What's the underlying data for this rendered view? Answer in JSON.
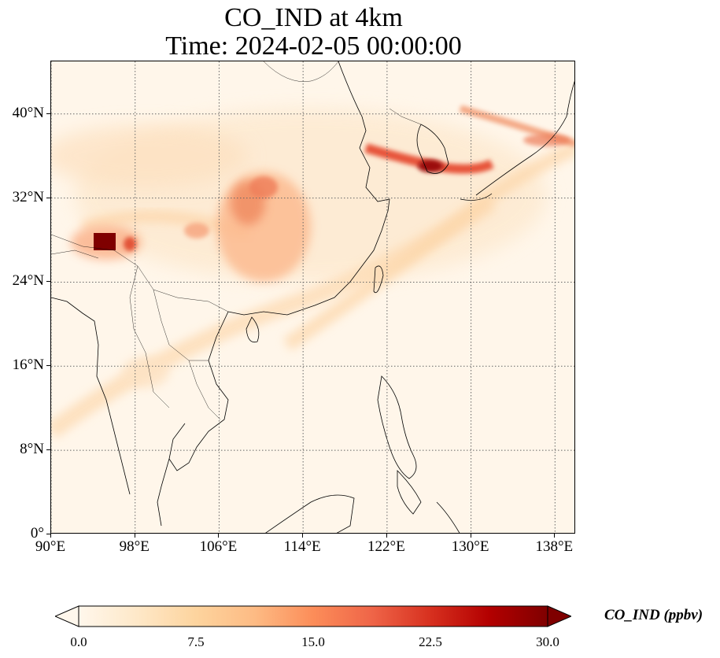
{
  "title": {
    "line1": "CO_IND at 4km",
    "line2": "Time: 2024-02-05 00:00:00"
  },
  "map": {
    "type": "filled-contour map",
    "variable": "CO_IND",
    "projection": "PlateCarree",
    "lon_range": [
      90,
      140
    ],
    "lat_range": [
      0,
      45
    ],
    "gridlines": "dotted",
    "colormap": "OrRd",
    "x_ticks": [
      "90°E",
      "98°E",
      "106°E",
      "114°E",
      "122°E",
      "130°E",
      "138°E"
    ],
    "y_ticks": [
      "0°",
      "8°N",
      "16°N",
      "24°N",
      "32°N",
      "40°N"
    ],
    "hotspots": [
      {
        "location": "eastern Himalaya / Bhutan region",
        "value_ppbv": 30
      },
      {
        "location": "Korea / Yellow Sea plume",
        "value_ppbv": 26
      },
      {
        "location": "Sichuan / Chongqing basin",
        "value_ppbv": 18
      }
    ]
  },
  "colorbar": {
    "label": "CO_IND (ppbv)",
    "ticks": [
      "0.0",
      "7.5",
      "15.0",
      "22.5",
      "30.0"
    ],
    "range": [
      0,
      30
    ],
    "extend": "both",
    "colors": [
      "#fff7ec",
      "#fee8c8",
      "#fdd49e",
      "#fdbb84",
      "#fc8d59",
      "#ef6548",
      "#d7301f",
      "#b30000",
      "#7f0000"
    ]
  }
}
